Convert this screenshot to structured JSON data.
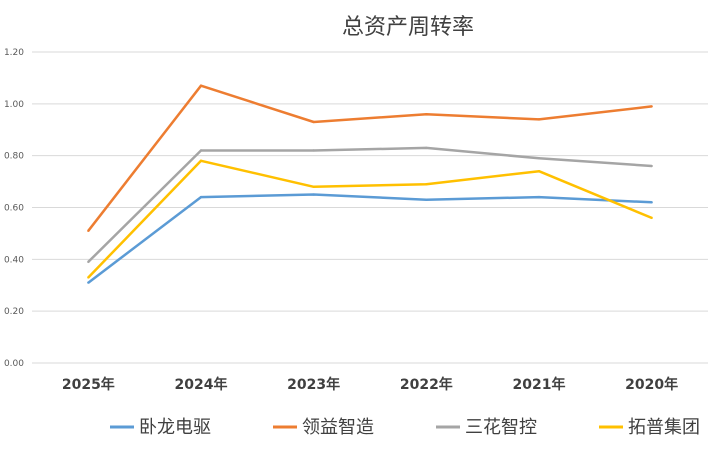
{
  "chart_data": {
    "type": "line",
    "title": "总资产周转率",
    "categories": [
      "2025年",
      "2024年",
      "2023年",
      "2022年",
      "2021年",
      "2020年"
    ],
    "ylim": [
      0,
      1.2
    ],
    "yticks": [
      "0.00",
      "0.20",
      "0.40",
      "0.60",
      "0.80",
      "1.00",
      "1.20"
    ],
    "grid": true,
    "legend_position": "bottom",
    "series": [
      {
        "name": "卧龙电驱",
        "color": "#5B9BD5",
        "values": [
          0.31,
          0.64,
          0.65,
          0.63,
          0.64,
          0.62
        ]
      },
      {
        "name": "领益智造",
        "color": "#ED7D31",
        "values": [
          0.51,
          1.07,
          0.93,
          0.96,
          0.94,
          0.99
        ]
      },
      {
        "name": "三花智控",
        "color": "#A5A5A5",
        "values": [
          0.39,
          0.82,
          0.82,
          0.83,
          0.79,
          0.76
        ]
      },
      {
        "name": "拓普集团",
        "color": "#FFC000",
        "values": [
          0.33,
          0.78,
          0.68,
          0.69,
          0.74,
          0.56
        ]
      }
    ]
  }
}
